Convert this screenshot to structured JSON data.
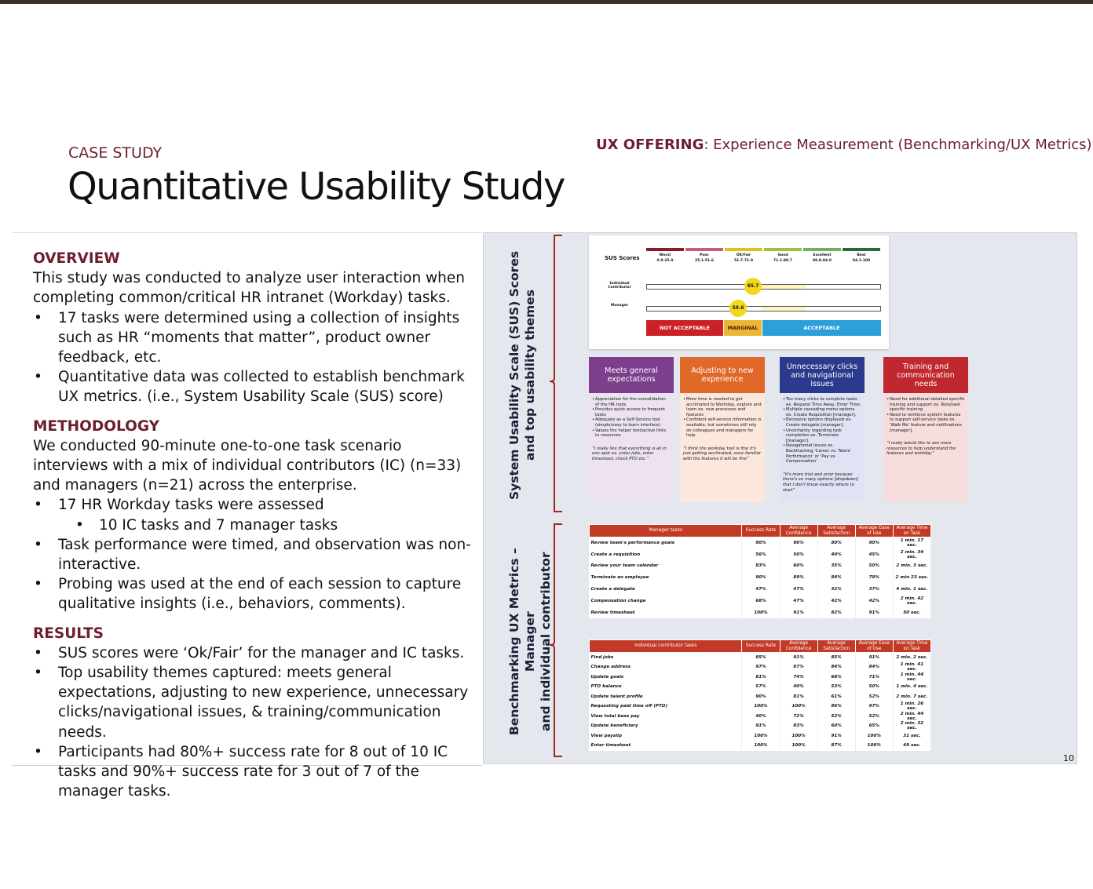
{
  "header": {
    "case_study": "CASE STUDY",
    "title": "Quantitative Usability Study",
    "offering_label": "UX OFFERING",
    "offering_text": ": Experience Measurement (Benchmarking/UX Metrics)"
  },
  "sections": [
    {
      "heading": "OVERVIEW",
      "intro": "This study was conducted to analyze user interaction when completing common/critical HR intranet (Workday) tasks.",
      "bullets": [
        {
          "text": "17 tasks were determined using a collection of insights such as HR “moments that matter”, product owner feedback, etc."
        },
        {
          "text": "Quantitative data was collected to establish benchmark UX metrics. (i.e., System Usability Scale (SUS) score)"
        }
      ]
    },
    {
      "heading": "METHODOLOGY",
      "intro": "We conducted 90-minute one-to-one task scenario interviews with a mix of individual contributors (IC) (n=33) and managers (n=21) across the enterprise.",
      "bullets": [
        {
          "text": "17 HR Workday tasks were assessed",
          "sub": [
            "10 IC tasks and 7 manager tasks"
          ]
        },
        {
          "text": "Task performance were timed, and observation was non-interactive."
        },
        {
          "text": "Probing was used at the end of each session to capture qualitative insights (i.e., behaviors, comments)."
        }
      ]
    },
    {
      "heading": "RESULTS",
      "bullets": [
        {
          "text": "SUS scores were ‘Ok/Fair’ for the manager and IC tasks."
        },
        {
          "text": "Top usability themes captured: meets general expectations, adjusting to new experience, unnecessary clicks/navigational issues, & training/communication needs."
        },
        {
          "text": "Participants had 80%+ success rate for 8 out of 10 IC tasks and 90%+ success rate for 3 out of 7 of the manager tasks."
        }
      ]
    }
  ],
  "panel": {
    "side_labels": [
      [
        "System Usability Scale (SUS) Scores",
        "and top usability themes"
      ],
      [
        "Benchmarking UX Metrics – Manager",
        "and individual contributor"
      ]
    ],
    "sus": {
      "label": "SUS Scores",
      "grades": [
        {
          "name": "Worst",
          "range": "0.0-25.0"
        },
        {
          "name": "Poor",
          "range": "25.1-51.6"
        },
        {
          "name": "OK/Fair",
          "range": "51.7-71.0"
        },
        {
          "name": "Good",
          "range": "71.1-80.7"
        },
        {
          "name": "Excellent",
          "range": "80.8-84.0"
        },
        {
          "name": "Best",
          "range": "84.1-100"
        }
      ],
      "rows": [
        {
          "name": "Individual Contributor",
          "score": "65.7"
        },
        {
          "name": "Manager",
          "score": "59.6"
        }
      ],
      "bands": [
        "NOT ACCEPTABLE",
        "MARGINAL",
        "ACCEPTABLE"
      ]
    },
    "themes": [
      {
        "title": "Meets general expectations",
        "bullets": [
          "Appreciation for the consolidation of the HR tools",
          "Provides quick access to frequent tasks",
          "Adequate as a Self-Service tool (simple/easy to learn interface)",
          "Values the helper text/active links to resources"
        ],
        "quote": "“I really like that everything is all in one spot ex. enter jobs, enter timesheet, check PTO etc.”"
      },
      {
        "title": "Adjusting to new experience",
        "bullets": [
          "More time is needed to get acclimated to Workday, explore and learn ex. new processes and features",
          "Confident self-service information is available, but sometimes still rely on colleagues and managers for help"
        ],
        "quote": "“I think the workday tool is fine it's just getting acclimated, once familiar with the features it will be fine”"
      },
      {
        "title": "Unnecessary clicks and navigational issues",
        "bullets": [
          "Too many clicks to complete tasks ex. Request Time Away, Enter Time.",
          "Multiple cascading menu options ex. Create Requisition [manager].",
          "Excessive options displayed ex. Create delegate [manager].",
          "Uncertainty regarding task completion ex. Terminate [manager].",
          "Navigational issues ex. Backtracking 'Career vs. Talent Performance' or 'Pay vs. Compensation'"
        ],
        "quote": "“It's more trial and error because there's so many options [dropdown] that I don't know exactly where to start”"
      },
      {
        "title": "Training and communication needs",
        "bullets": [
          "Need for additional detailed specific training and support ex. Role/task specific training",
          "Need to reinforce system features to support self-service tasks ex. 'Walk Me' feature and notifications [manager]."
        ],
        "quote": "“I really would like to see more resources to help understand the features and workday”"
      }
    ],
    "tables": [
      {
        "header": [
          "Manager tasks",
          "Success Rate",
          "Average Confidence",
          "Average Satisfaction",
          "Average Ease of Use",
          "Average Time on Task"
        ],
        "rows": [
          [
            "Review team's performance goals",
            "90%",
            "90%",
            "80%",
            "90%",
            "1 min. 17 sec."
          ],
          [
            "Create a requisition",
            "56%",
            "50%",
            "40%",
            "45%",
            "2 min. 34 sec."
          ],
          [
            "Review your team calendar",
            "83%",
            "60%",
            "35%",
            "50%",
            "2 min. 3 sec."
          ],
          [
            "Terminate an employee",
            "90%",
            "89%",
            "84%",
            "79%",
            "2 min 23 sec."
          ],
          [
            "Create a delegate",
            "47%",
            "47%",
            "32%",
            "37%",
            "4 min. 1 sec."
          ],
          [
            "Compensation change",
            "68%",
            "47%",
            "42%",
            "42%",
            "2 min. 42 sec."
          ],
          [
            "Review timesheet",
            "100%",
            "91%",
            "82%",
            "91%",
            "50 sec."
          ]
        ]
      },
      {
        "header": [
          "Individual contributor tasks",
          "Success Rate",
          "Average Confidence",
          "Average Satisfaction",
          "Average Ease of Use",
          "Average Time on Task"
        ],
        "rows": [
          [
            "Find jobs",
            "85%",
            "91%",
            "85%",
            "91%",
            "2 min. 2 sec."
          ],
          [
            "Change address",
            "97%",
            "87%",
            "84%",
            "84%",
            "1 min. 41 sec."
          ],
          [
            "Update goals",
            "81%",
            "74%",
            "68%",
            "71%",
            "1 min. 44 sec."
          ],
          [
            "PTO balance",
            "57%",
            "40%",
            "53%",
            "50%",
            "1 min. 4 sec."
          ],
          [
            "Update talent profile",
            "90%",
            "81%",
            "61%",
            "52%",
            "2 min. 7 sec."
          ],
          [
            "Requesting paid time off (PTO)",
            "100%",
            "100%",
            "86%",
            "97%",
            "1 min. 26 sec."
          ],
          [
            "View total base pay",
            "40%",
            "72%",
            "52%",
            "52%",
            "2 min. 44 sec."
          ],
          [
            "Update beneficiary",
            "91%",
            "83%",
            "60%",
            "65%",
            "2 min. 32 sec."
          ],
          [
            "View payslip",
            "100%",
            "100%",
            "91%",
            "100%",
            "31 sec."
          ],
          [
            "Enter timesheet",
            "100%",
            "100%",
            "87%",
            "100%",
            "49 sec."
          ]
        ]
      }
    ]
  },
  "page_number": "10"
}
